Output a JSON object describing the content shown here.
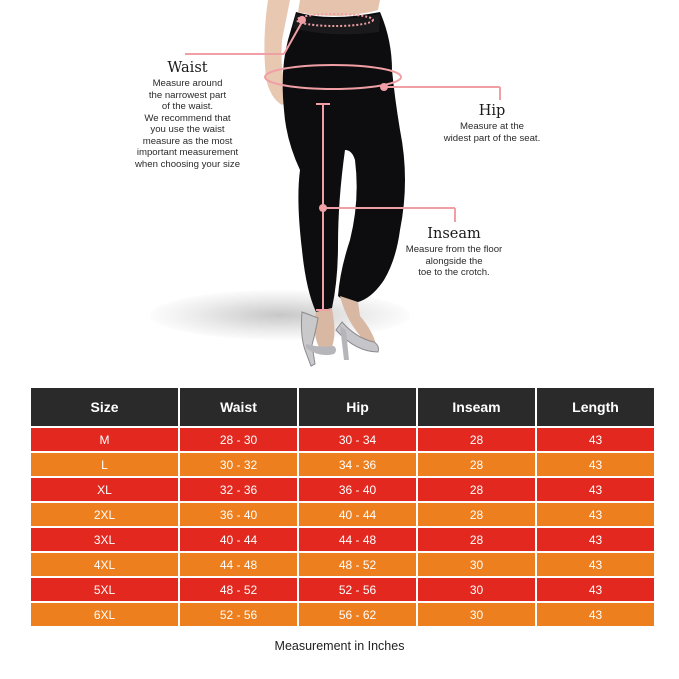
{
  "annotations": {
    "waist": {
      "title": "Waist",
      "lines": [
        "Measure around",
        "the narrowest part",
        "of the waist.",
        "We recommend that",
        "you use the waist",
        "measure as the most",
        "important measurement",
        "when choosing your size"
      ]
    },
    "hip": {
      "title": "Hip",
      "lines": [
        "Measure at the",
        "widest part of the seat."
      ]
    },
    "inseam": {
      "title": "Inseam",
      "lines": [
        "Measure from the floor",
        "alongside the",
        "toe to the crotch."
      ]
    }
  },
  "colors": {
    "header": "#2a2a2a",
    "row_red": "#e2281f",
    "row_orange": "#ed7f1e",
    "guide_pink": "#f0a0a5"
  },
  "size_table": {
    "headers": [
      "Size",
      "Waist",
      "Hip",
      "Inseam",
      "Length"
    ],
    "rows": [
      {
        "cells": [
          "M",
          "28 - 30",
          "30 - 34",
          "28",
          "43"
        ],
        "color": "red"
      },
      {
        "cells": [
          "L",
          "30 - 32",
          "34 - 36",
          "28",
          "43"
        ],
        "color": "orange"
      },
      {
        "cells": [
          "XL",
          "32 - 36",
          "36 - 40",
          "28",
          "43"
        ],
        "color": "red"
      },
      {
        "cells": [
          "2XL",
          "36 - 40",
          "40 - 44",
          "28",
          "43"
        ],
        "color": "orange"
      },
      {
        "cells": [
          "3XL",
          "40 - 44",
          "44 - 48",
          "28",
          "43"
        ],
        "color": "red"
      },
      {
        "cells": [
          "4XL",
          "44 - 48",
          "48 - 52",
          "30",
          "43"
        ],
        "color": "orange"
      },
      {
        "cells": [
          "5XL",
          "48 - 52",
          "52 - 56",
          "30",
          "43"
        ],
        "color": "red"
      },
      {
        "cells": [
          "6XL",
          "52 - 56",
          "56 - 62",
          "30",
          "43"
        ],
        "color": "orange"
      }
    ]
  },
  "caption": "Measurement in Inches"
}
